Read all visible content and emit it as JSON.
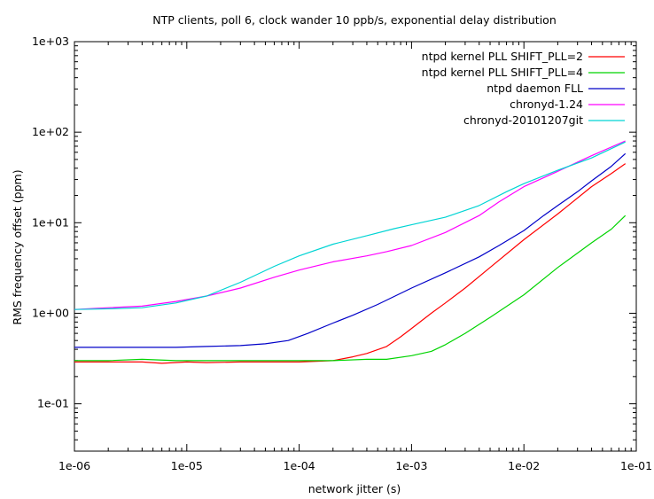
{
  "chart_data": {
    "type": "line",
    "title": "NTP clients, poll 6, clock wander 10 ppb/s, exponential delay distribution",
    "xlabel": "network jitter (s)",
    "ylabel": "RMS frequency offset (ppm)",
    "xscale": "log",
    "yscale": "log",
    "xlim": [
      1e-06,
      0.1
    ],
    "ylim": [
      0.03,
      1000
    ],
    "x_ticks": [
      {
        "value": 1e-06,
        "label": "1e-06"
      },
      {
        "value": 1e-05,
        "label": "1e-05"
      },
      {
        "value": 0.0001,
        "label": "1e-04"
      },
      {
        "value": 0.001,
        "label": "1e-03"
      },
      {
        "value": 0.01,
        "label": "1e-02"
      },
      {
        "value": 0.1,
        "label": "1e-01"
      }
    ],
    "y_ticks": [
      {
        "value": 0.1,
        "label": "1e-01"
      },
      {
        "value": 1,
        "label": "1e+00"
      },
      {
        "value": 10,
        "label": "1e+01"
      },
      {
        "value": 100,
        "label": "1e+02"
      },
      {
        "value": 1000,
        "label": "1e+03"
      }
    ],
    "grid": false,
    "legend_position": "top-right",
    "series": [
      {
        "name": "ntpd kernel PLL SHIFT_PLL=2",
        "color": "#ff0000",
        "points": [
          [
            1e-06,
            0.29
          ],
          [
            2e-06,
            0.29
          ],
          [
            4e-06,
            0.29
          ],
          [
            6e-06,
            0.28
          ],
          [
            1e-05,
            0.29
          ],
          [
            1.5e-05,
            0.285
          ],
          [
            3e-05,
            0.29
          ],
          [
            6e-05,
            0.29
          ],
          [
            0.0001,
            0.29
          ],
          [
            0.0002,
            0.3
          ],
          [
            0.0003,
            0.33
          ],
          [
            0.0004,
            0.36
          ],
          [
            0.0006,
            0.43
          ],
          [
            0.0008,
            0.55
          ],
          [
            0.001,
            0.68
          ],
          [
            0.0015,
            1.0
          ],
          [
            0.002,
            1.3
          ],
          [
            0.003,
            1.9
          ],
          [
            0.005,
            3.2
          ],
          [
            0.01,
            6.5
          ],
          [
            0.02,
            12.5
          ],
          [
            0.04,
            25
          ],
          [
            0.06,
            35
          ],
          [
            0.08,
            45
          ]
        ]
      },
      {
        "name": "ntpd kernel PLL SHIFT_PLL=4",
        "color": "#00d400",
        "points": [
          [
            1e-06,
            0.3
          ],
          [
            2e-06,
            0.3
          ],
          [
            4e-06,
            0.31
          ],
          [
            8e-06,
            0.3
          ],
          [
            1.5e-05,
            0.3
          ],
          [
            3e-05,
            0.3
          ],
          [
            6e-05,
            0.3
          ],
          [
            0.0001,
            0.3
          ],
          [
            0.0002,
            0.3
          ],
          [
            0.0004,
            0.31
          ],
          [
            0.0006,
            0.31
          ],
          [
            0.001,
            0.34
          ],
          [
            0.0015,
            0.38
          ],
          [
            0.002,
            0.45
          ],
          [
            0.003,
            0.6
          ],
          [
            0.005,
            0.9
          ],
          [
            0.01,
            1.6
          ],
          [
            0.02,
            3.2
          ],
          [
            0.04,
            6
          ],
          [
            0.06,
            8.5
          ],
          [
            0.08,
            12
          ]
        ]
      },
      {
        "name": "ntpd daemon FLL",
        "color": "#0000c8",
        "points": [
          [
            1e-06,
            0.42
          ],
          [
            2e-06,
            0.42
          ],
          [
            4e-06,
            0.42
          ],
          [
            8e-06,
            0.42
          ],
          [
            1.5e-05,
            0.43
          ],
          [
            3e-05,
            0.44
          ],
          [
            5e-05,
            0.46
          ],
          [
            8e-05,
            0.5
          ],
          [
            0.00012,
            0.6
          ],
          [
            0.0002,
            0.78
          ],
          [
            0.0003,
            0.95
          ],
          [
            0.0005,
            1.25
          ],
          [
            0.001,
            1.9
          ],
          [
            0.002,
            2.8
          ],
          [
            0.004,
            4.2
          ],
          [
            0.006,
            5.6
          ],
          [
            0.01,
            8.2
          ],
          [
            0.015,
            12
          ],
          [
            0.02,
            15.5
          ],
          [
            0.03,
            22
          ],
          [
            0.04,
            29
          ],
          [
            0.06,
            42
          ],
          [
            0.08,
            58
          ]
        ]
      },
      {
        "name": "chronyd-1.24",
        "color": "#ff00ff",
        "points": [
          [
            1e-06,
            1.1
          ],
          [
            2e-06,
            1.15
          ],
          [
            4e-06,
            1.2
          ],
          [
            8e-06,
            1.35
          ],
          [
            1.5e-05,
            1.55
          ],
          [
            3e-05,
            1.9
          ],
          [
            6e-05,
            2.5
          ],
          [
            0.0001,
            3.0
          ],
          [
            0.0002,
            3.7
          ],
          [
            0.0004,
            4.3
          ],
          [
            0.0006,
            4.8
          ],
          [
            0.001,
            5.6
          ],
          [
            0.002,
            7.8
          ],
          [
            0.004,
            12
          ],
          [
            0.006,
            17
          ],
          [
            0.01,
            25
          ],
          [
            0.02,
            37
          ],
          [
            0.04,
            55
          ],
          [
            0.08,
            80
          ]
        ]
      },
      {
        "name": "chronyd-20101207git",
        "color": "#00d4d4",
        "points": [
          [
            1e-06,
            1.1
          ],
          [
            2e-06,
            1.12
          ],
          [
            4e-06,
            1.15
          ],
          [
            8e-06,
            1.3
          ],
          [
            1.5e-05,
            1.55
          ],
          [
            3e-05,
            2.2
          ],
          [
            6e-05,
            3.3
          ],
          [
            0.0001,
            4.3
          ],
          [
            0.0002,
            5.8
          ],
          [
            0.0004,
            7.2
          ],
          [
            0.0007,
            8.6
          ],
          [
            0.001,
            9.5
          ],
          [
            0.002,
            11.5
          ],
          [
            0.004,
            15.5
          ],
          [
            0.007,
            22
          ],
          [
            0.01,
            27
          ],
          [
            0.02,
            38
          ],
          [
            0.04,
            52
          ],
          [
            0.08,
            78
          ]
        ]
      }
    ]
  }
}
